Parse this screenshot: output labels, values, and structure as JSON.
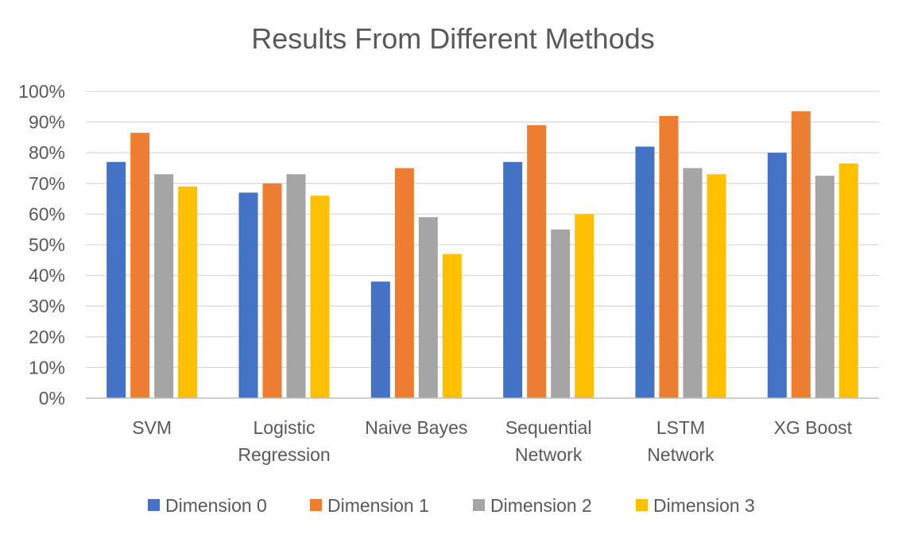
{
  "chart_data": {
    "type": "bar",
    "title": "Results From Different Methods",
    "categories": [
      [
        "SVM"
      ],
      [
        "Logistic",
        "Regression"
      ],
      [
        "Naive Bayes"
      ],
      [
        "Sequential",
        "Network"
      ],
      [
        "LSTM",
        "Network"
      ],
      [
        "XG Boost"
      ]
    ],
    "series": [
      {
        "name": "Dimension 0",
        "color": "#4472c4",
        "values": [
          77,
          67,
          38,
          77,
          82,
          80
        ]
      },
      {
        "name": "Dimension 1",
        "color": "#ed7d31",
        "values": [
          86.5,
          70,
          75,
          89,
          92,
          93.5
        ]
      },
      {
        "name": "Dimension 2",
        "color": "#a5a5a5",
        "values": [
          73,
          73,
          59,
          55,
          75,
          72.5
        ]
      },
      {
        "name": "Dimension 3",
        "color": "#ffc000",
        "values": [
          69,
          66,
          47,
          60,
          73,
          76.5
        ]
      }
    ],
    "ylim": [
      0,
      100
    ],
    "yticks": [
      "0%",
      "10%",
      "20%",
      "30%",
      "40%",
      "50%",
      "60%",
      "70%",
      "80%",
      "90%",
      "100%"
    ],
    "xlabel": "",
    "ylabel": "",
    "grid": true,
    "legend": "bottom"
  }
}
